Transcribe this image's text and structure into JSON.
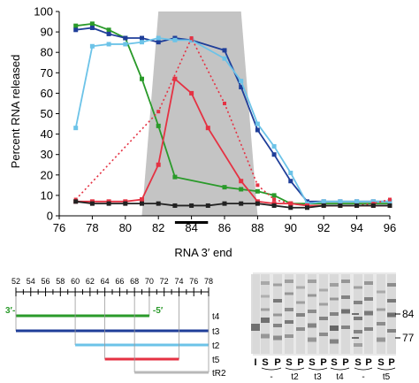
{
  "chart_data": {
    "type": "line",
    "xlabel": "RNA 3′ end",
    "ylabel": "Percent RNA released",
    "xlim": [
      76,
      96
    ],
    "ylim": [
      0,
      100
    ],
    "x_ticks": [
      "76",
      "78",
      "80",
      "82",
      "84",
      "86",
      "88",
      "90",
      "92",
      "94",
      "96"
    ],
    "y_ticks": [
      "0",
      "10",
      "20",
      "30",
      "40",
      "50",
      "60",
      "70",
      "80",
      "90",
      "100"
    ],
    "shaded_region": [
      [
        81,
        0
      ],
      [
        82,
        100
      ],
      [
        87,
        100
      ],
      [
        88,
        0
      ]
    ],
    "bar_marker": [
      83,
      85
    ],
    "grid": false,
    "legend": "none",
    "series": [
      {
        "color": "#2a9a2a",
        "dash": "solid",
        "marker": "square",
        "points": [
          [
            77,
            93
          ],
          [
            78,
            94
          ],
          [
            79,
            91
          ],
          [
            80,
            87
          ],
          [
            81,
            67
          ],
          [
            82,
            44
          ],
          [
            83,
            19
          ],
          [
            86,
            14
          ],
          [
            87,
            13
          ],
          [
            88,
            12
          ],
          [
            89,
            10
          ],
          [
            90,
            6
          ],
          [
            91,
            6
          ],
          [
            92,
            6
          ],
          [
            93,
            6
          ],
          [
            94,
            6
          ],
          [
            95,
            6
          ],
          [
            96,
            6
          ]
        ]
      },
      {
        "color": "#1f3e99",
        "dash": "solid",
        "marker": "square",
        "points": [
          [
            77,
            91
          ],
          [
            78,
            92
          ],
          [
            79,
            89
          ],
          [
            80,
            87
          ],
          [
            81,
            87
          ],
          [
            82,
            85
          ],
          [
            83,
            87
          ],
          [
            84,
            86
          ],
          [
            86,
            81
          ],
          [
            87,
            63
          ],
          [
            88,
            42
          ],
          [
            89,
            30
          ],
          [
            90,
            17
          ],
          [
            91,
            7
          ],
          [
            92,
            7
          ],
          [
            93,
            7
          ],
          [
            94,
            7
          ],
          [
            95,
            7
          ],
          [
            96,
            7
          ]
        ]
      },
      {
        "color": "#6cc3e8",
        "dash": "solid",
        "marker": "square",
        "points": [
          [
            77,
            43
          ],
          [
            78,
            83
          ],
          [
            79,
            84
          ],
          [
            80,
            84
          ],
          [
            81,
            85
          ],
          [
            82,
            87
          ],
          [
            83,
            86
          ],
          [
            84,
            86
          ],
          [
            86,
            77
          ],
          [
            87,
            66
          ],
          [
            88,
            45
          ],
          [
            89,
            34
          ],
          [
            90,
            21
          ],
          [
            91,
            6
          ],
          [
            92,
            7
          ],
          [
            93,
            7
          ],
          [
            94,
            7
          ],
          [
            95,
            7
          ],
          [
            96,
            7
          ]
        ]
      },
      {
        "color": "#e53243",
        "dash": "solid",
        "marker": "square",
        "points": [
          [
            77,
            7
          ],
          [
            78,
            7
          ],
          [
            79,
            7
          ],
          [
            80,
            7
          ],
          [
            81,
            8
          ],
          [
            82,
            25
          ],
          [
            83,
            67
          ],
          [
            84,
            60
          ],
          [
            85,
            43
          ],
          [
            87,
            17
          ],
          [
            88,
            7
          ],
          [
            89,
            6
          ],
          [
            90,
            6
          ],
          [
            91,
            5
          ],
          [
            92,
            5
          ],
          [
            93,
            5
          ],
          [
            94,
            5
          ],
          [
            95,
            5
          ],
          [
            96,
            5
          ]
        ]
      },
      {
        "color": "#e53243",
        "dash": "dotted",
        "marker": "square",
        "points": [
          [
            77,
            8
          ],
          [
            82,
            51
          ],
          [
            84,
            87
          ],
          [
            86,
            55
          ],
          [
            88,
            15
          ],
          [
            89,
            8
          ],
          [
            90,
            6
          ],
          [
            91,
            5
          ],
          [
            92,
            5
          ],
          [
            93,
            5
          ],
          [
            94,
            5
          ],
          [
            95,
            6
          ],
          [
            96,
            8
          ]
        ]
      },
      {
        "color": "#222222",
        "dash": "solid",
        "marker": "square",
        "points": [
          [
            77,
            7
          ],
          [
            78,
            6
          ],
          [
            79,
            6
          ],
          [
            80,
            6
          ],
          [
            81,
            6
          ],
          [
            82,
            6
          ],
          [
            83,
            5
          ],
          [
            84,
            5
          ],
          [
            85,
            5
          ],
          [
            86,
            6
          ],
          [
            87,
            6
          ],
          [
            88,
            6
          ],
          [
            89,
            5
          ],
          [
            90,
            4
          ],
          [
            91,
            4
          ],
          [
            92,
            5
          ],
          [
            93,
            5
          ],
          [
            94,
            5
          ],
          [
            95,
            5
          ],
          [
            96,
            5
          ]
        ]
      }
    ]
  },
  "ruler": {
    "min": 52,
    "max": 78,
    "labels": [
      "52",
      "54",
      "56",
      "58",
      "60",
      "62",
      "64",
      "66",
      "68",
      "70",
      "72",
      "74",
      "76",
      "78"
    ]
  },
  "constructs": [
    {
      "name": "t4",
      "color": "#2a9a2a",
      "start": 52,
      "end": 70,
      "left_label": "3′-",
      "right_label": "-5′"
    },
    {
      "name": "t3",
      "color": "#1f3e99",
      "start": 52,
      "end": 78,
      "left_label": "",
      "right_label": ""
    },
    {
      "name": "t2",
      "color": "#6cc3e8",
      "start": 60,
      "end": 78,
      "left_label": "",
      "right_label": ""
    },
    {
      "name": "t5",
      "color": "#e53243",
      "start": 64,
      "end": 74,
      "left_label": "",
      "right_label": ""
    },
    {
      "name": "tR2",
      "color": "#b8b8b8",
      "start": 68,
      "end": 78,
      "left_label": "",
      "right_label": ""
    }
  ],
  "gel": {
    "lane_labels": [
      "I",
      "S",
      "P",
      "S",
      "P",
      "S",
      "P",
      "S",
      "P",
      "S",
      "P",
      "S",
      "P"
    ],
    "groups": [
      {
        "label": "-"
      },
      {
        "label": "t2"
      },
      {
        "label": "t3"
      },
      {
        "label": "t4"
      },
      {
        "label": "-"
      },
      {
        "label": "t5"
      }
    ],
    "markers": [
      "84",
      "77"
    ]
  }
}
